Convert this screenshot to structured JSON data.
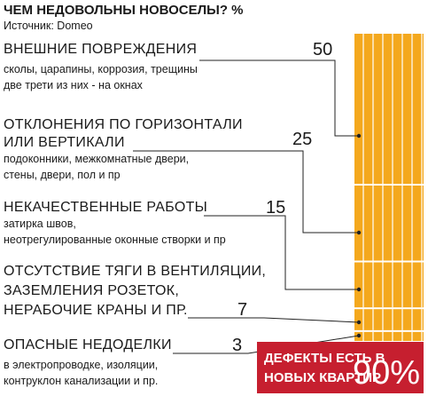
{
  "chart_data": {
    "type": "stacked-column",
    "title": "ЧЕМ НЕДОВОЛЬНЫ НОВОСЕЛЫ? %",
    "source": "Источник: Domeo",
    "color": "#f4a81d",
    "items": [
      {
        "title_lines": [
          "ВНЕШНИЕ ПОВРЕЖДЕНИЯ"
        ],
        "note_lines": [
          "сколы, царапины, коррозия, трещины",
          "две трети из них - на окнах"
        ]
      },
      {
        "title_lines": [
          "ОТКЛОНЕНИЯ ПО ГОРИЗОНТАЛИ",
          "ИЛИ ВЕРТИКАЛИ"
        ],
        "note_lines": [
          "подоконники, межкомнатные двери,",
          "стены, двери, пол и пр"
        ]
      },
      {
        "title_lines": [
          "НЕКАЧЕСТВЕННЫЕ РАБОТЫ"
        ],
        "note_lines": [
          "затирка швов,",
          "неотрегулированные оконные створки и пр"
        ]
      },
      {
        "title_lines": [
          "ОТСУТСТВИЕ ТЯГИ В ВЕНТИЛЯЦИИ,",
          "ЗАЗЕМЛЕНИЯ РОЗЕТОК,",
          "НЕРАБОЧИЕ КРАНЫ И ПР."
        ],
        "note_lines": []
      },
      {
        "title_lines": [
          "ОПАСНЫЕ НЕДОДЕЛКИ"
        ],
        "note_lines": [
          "в электропроводке, изоляции,",
          "контруклон канализации и пр."
        ]
      }
    ],
    "values": [
      50,
      25,
      15,
      7,
      3
    ],
    "highlight": {
      "lines": [
        "ДЕФЕКТЫ ЕСТЬ В",
        "НОВЫХ КВАРТИР"
      ],
      "figure": "90%",
      "color": "#c61f2f"
    }
  }
}
